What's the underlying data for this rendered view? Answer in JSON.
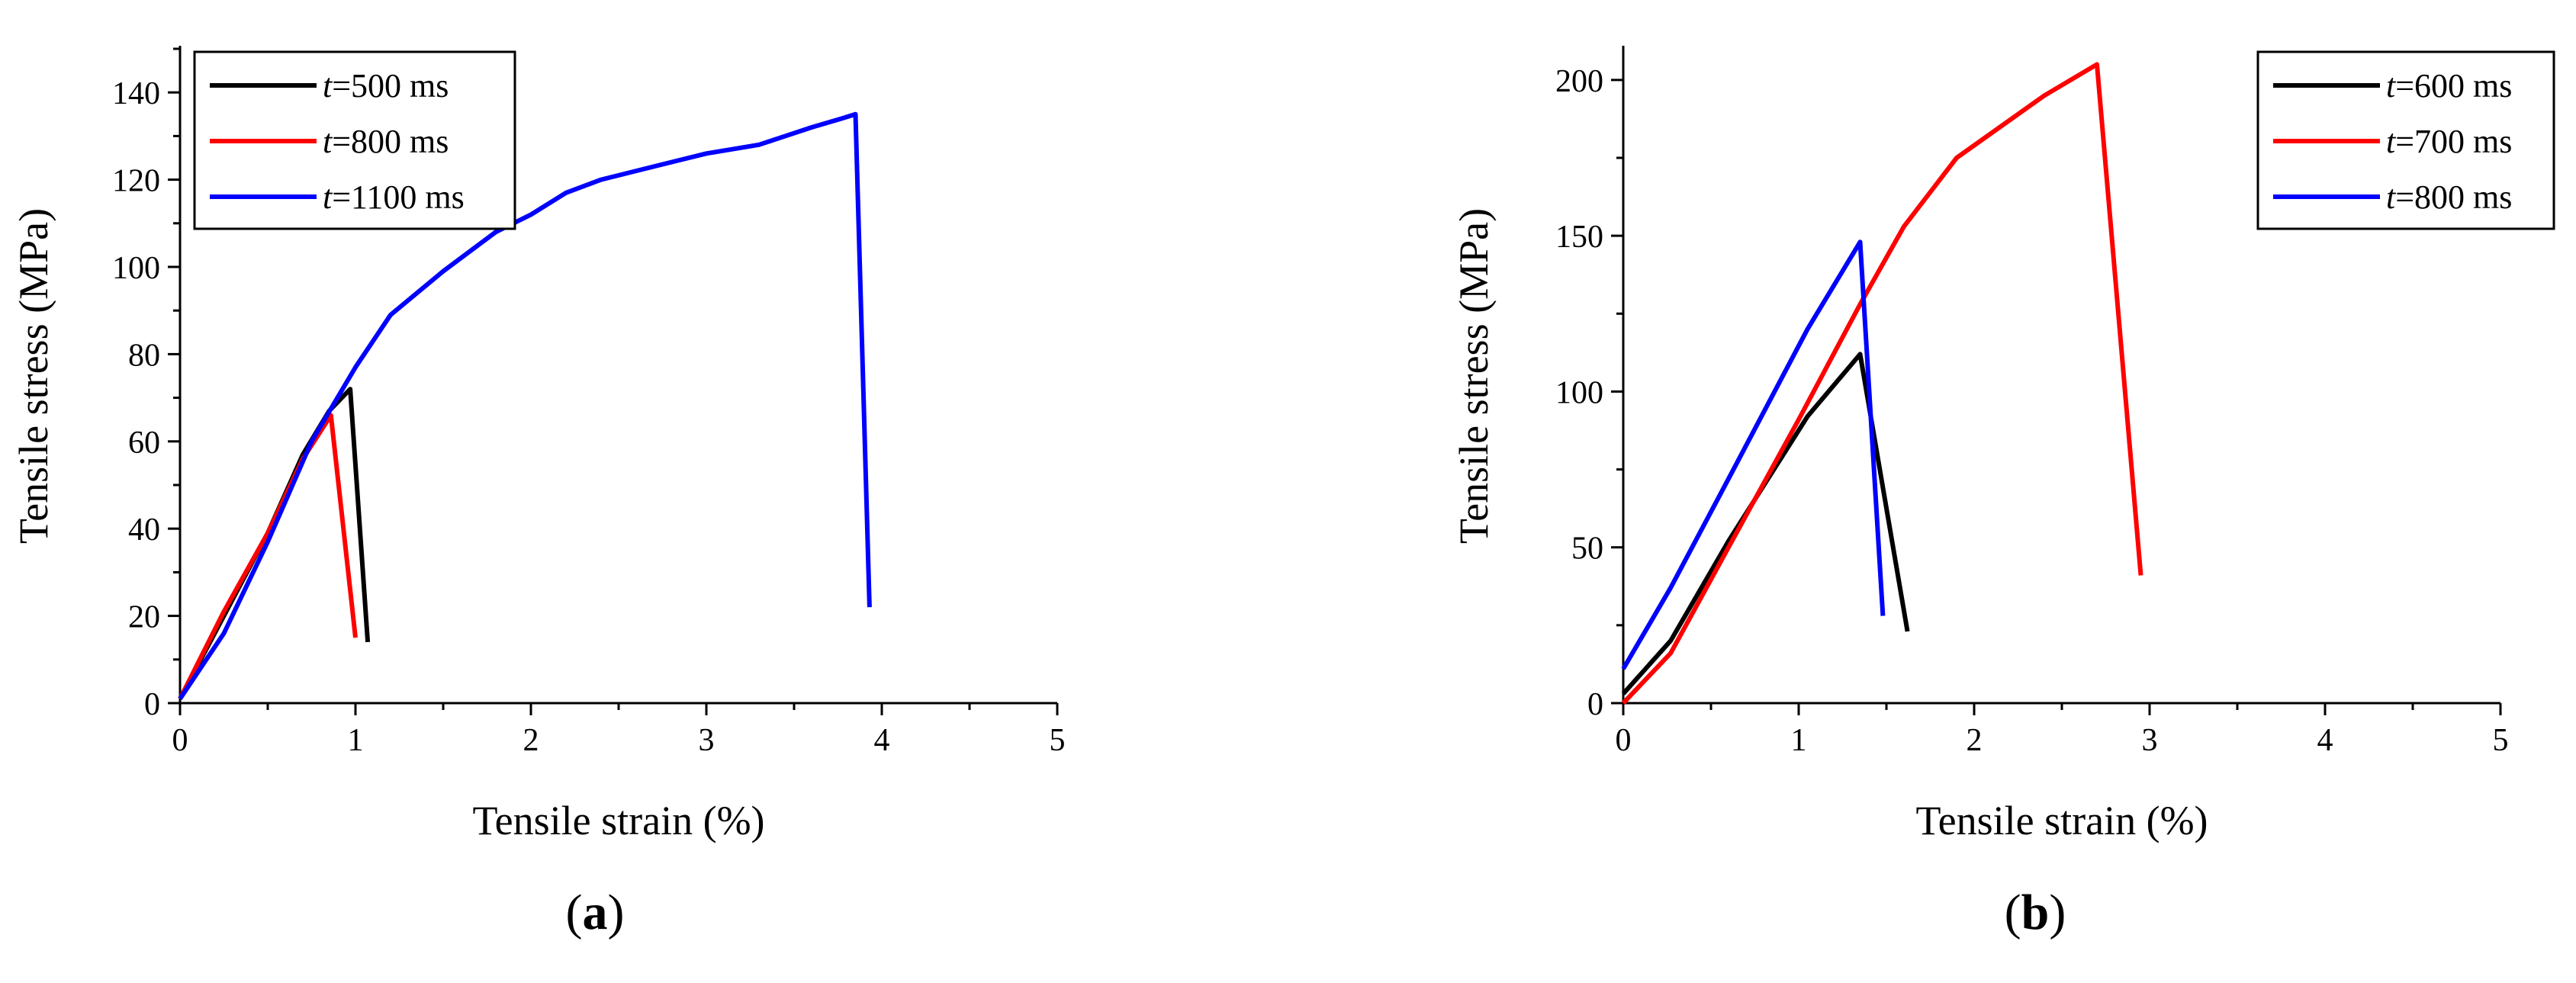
{
  "figure": {
    "panels": [
      {
        "label_open": "(",
        "label_letter": "a",
        "label_close": ")"
      },
      {
        "label_open": "(",
        "label_letter": "b",
        "label_close": ")"
      }
    ]
  },
  "chart_data": [
    {
      "type": "line",
      "title": "",
      "xlabel": "Tensile strain (%)",
      "ylabel": "Tensile stress (MPa)",
      "xlim": [
        0,
        5
      ],
      "ylim": [
        0,
        150
      ],
      "xticks": [
        0,
        1,
        2,
        3,
        4,
        5
      ],
      "yticks": [
        0,
        20,
        40,
        60,
        80,
        100,
        120,
        140
      ],
      "grid": false,
      "legend_position": "top-left",
      "series": [
        {
          "name_italic": "t",
          "name_rest": "=500 ms",
          "color": "#000000",
          "x": [
            0,
            0.25,
            0.5,
            0.7,
            0.85,
            0.97,
            1.07
          ],
          "y": [
            1,
            20,
            39,
            57,
            67,
            72,
            14
          ]
        },
        {
          "name_italic": "t",
          "name_rest": "=800 ms",
          "color": "#ff0000",
          "x": [
            0,
            0.25,
            0.5,
            0.7,
            0.86,
            1.0
          ],
          "y": [
            1,
            21,
            39,
            56,
            66,
            15
          ]
        },
        {
          "name_italic": "t",
          "name_rest": "=1100 ms",
          "color": "#0000ff",
          "x": [
            0,
            0.25,
            0.5,
            0.75,
            1.0,
            1.2,
            1.5,
            1.8,
            2.0,
            2.2,
            2.4,
            2.7,
            3.0,
            3.3,
            3.6,
            3.77,
            3.85,
            3.93
          ],
          "y": [
            1,
            16,
            37,
            60,
            77,
            89,
            99,
            108,
            112,
            117,
            120,
            123,
            126,
            128,
            132,
            134,
            135,
            22
          ]
        }
      ]
    },
    {
      "type": "line",
      "title": "",
      "xlabel": "Tensile strain (%)",
      "ylabel": "Tensile stress (MPa)",
      "xlim": [
        0,
        5
      ],
      "ylim": [
        0,
        210
      ],
      "xticks": [
        0,
        1,
        2,
        3,
        4,
        5
      ],
      "yticks": [
        0,
        50,
        100,
        150,
        200
      ],
      "grid": false,
      "legend_position": "top-right",
      "series": [
        {
          "name_italic": "t",
          "name_rest": "=600 ms",
          "color": "#000000",
          "x": [
            0,
            0.27,
            0.6,
            1.05,
            1.35,
            1.62
          ],
          "y": [
            3,
            20,
            52,
            92,
            112,
            23
          ]
        },
        {
          "name_italic": "t",
          "name_rest": "=700 ms",
          "color": "#ff0000",
          "x": [
            0,
            0.27,
            0.6,
            1.0,
            1.35,
            1.6,
            1.9,
            2.4,
            2.7,
            2.95
          ],
          "y": [
            0,
            16,
            50,
            91,
            128,
            153,
            175,
            195,
            205,
            41
          ]
        },
        {
          "name_italic": "t",
          "name_rest": "=800 ms",
          "color": "#0000ff",
          "x": [
            0,
            0.27,
            0.6,
            1.05,
            1.35,
            1.48
          ],
          "y": [
            11,
            37,
            72,
            120,
            148,
            28
          ]
        }
      ]
    }
  ]
}
